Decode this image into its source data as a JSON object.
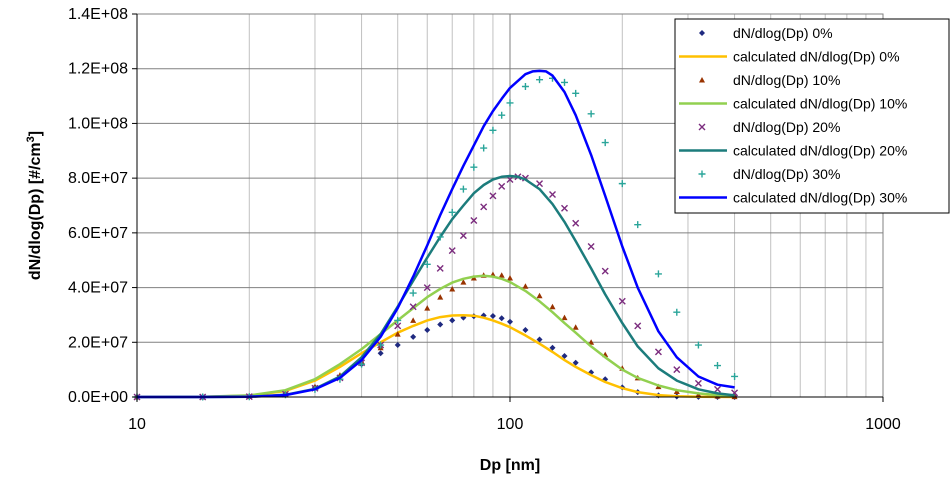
{
  "chart_data": {
    "type": "scatter",
    "title": "",
    "xlabel": "Dp [nm]",
    "ylabel_main": "dN/dlog(Dp) [#/cm",
    "ylabel_sup": "3",
    "ylabel_end": "]",
    "x_scale": "log",
    "xlim": [
      10,
      1000
    ],
    "ylim": [
      0,
      140000000
    ],
    "x_tick_labels": [
      "10",
      "100",
      "1000"
    ],
    "y_tick_labels": [
      "0.0E+00",
      "2.0E+07",
      "4.0E+07",
      "6.0E+07",
      "8.0E+07",
      "1.0E+08",
      "1.2E+08",
      "1.4E+08"
    ],
    "grid": true,
    "legend_position": "top-right",
    "series": [
      {
        "name": "dN/dlog(Dp) 0%",
        "kind": "measured",
        "marker": "diamond",
        "color": "#1f2a80",
        "x": [
          10,
          15,
          20,
          25,
          30,
          35,
          40,
          45,
          50,
          55,
          60,
          65,
          70,
          75,
          80,
          85,
          90,
          95,
          100,
          110,
          120,
          130,
          140,
          150,
          165,
          180,
          200,
          220,
          250,
          280,
          320,
          360,
          400
        ],
        "y": [
          0,
          10000,
          200000,
          1200000,
          3500000,
          7500000,
          12000000,
          16000000,
          19000000,
          22000000,
          24500000,
          26500000,
          28000000,
          29000000,
          29500000,
          29800000,
          29600000,
          28800000,
          27500000,
          24500000,
          21000000,
          18000000,
          15000000,
          12500000,
          9000000,
          6500000,
          3500000,
          1800000,
          600000,
          200000,
          50000,
          20000,
          10000
        ]
      },
      {
        "name": "calculated dN/dlog(Dp) 0%",
        "kind": "calculated",
        "marker": "line",
        "color": "#ffc000",
        "x": [
          10,
          15,
          20,
          25,
          30,
          35,
          40,
          45,
          50,
          55,
          60,
          65,
          70,
          75,
          80,
          85,
          90,
          95,
          100,
          110,
          120,
          130,
          140,
          150,
          165,
          180,
          200,
          220,
          250,
          280,
          320,
          360,
          400
        ],
        "y": [
          0,
          50000,
          500000,
          2200000,
          6000000,
          11000000,
          16000000,
          20000000,
          23500000,
          26000000,
          28000000,
          29200000,
          29800000,
          29900000,
          29700000,
          29000000,
          28000000,
          26800000,
          25500000,
          22500000,
          19500000,
          16500000,
          13500000,
          11000000,
          8000000,
          5500000,
          3200000,
          1800000,
          700000,
          250000,
          60000,
          20000,
          5000
        ]
      },
      {
        "name": "dN/dlog(Dp) 10%",
        "kind": "measured",
        "marker": "triangle",
        "color": "#993300",
        "x": [
          10,
          15,
          20,
          25,
          30,
          35,
          40,
          45,
          50,
          55,
          60,
          65,
          70,
          75,
          80,
          85,
          90,
          95,
          100,
          110,
          120,
          130,
          140,
          150,
          165,
          180,
          200,
          220,
          250,
          280,
          320,
          360,
          400
        ],
        "y": [
          0,
          10000,
          200000,
          1300000,
          3800000,
          8000000,
          13000000,
          18000000,
          23000000,
          28000000,
          32500000,
          36500000,
          39500000,
          42000000,
          43500000,
          44500000,
          44800000,
          44500000,
          43500000,
          40500000,
          37000000,
          33000000,
          29000000,
          25500000,
          20000000,
          15500000,
          10500000,
          7000000,
          3800000,
          2000000,
          800000,
          300000,
          150000
        ]
      },
      {
        "name": "calculated dN/dlog(Dp) 10%",
        "kind": "calculated",
        "marker": "line",
        "color": "#92d050",
        "x": [
          10,
          15,
          20,
          25,
          30,
          35,
          40,
          45,
          50,
          55,
          60,
          65,
          70,
          75,
          80,
          85,
          90,
          95,
          100,
          110,
          120,
          130,
          140,
          150,
          165,
          180,
          200,
          220,
          250,
          280,
          320,
          360,
          400
        ],
        "y": [
          0,
          60000,
          600000,
          2500000,
          6500000,
          12000000,
          17500000,
          23000000,
          28000000,
          32500000,
          36500000,
          39500000,
          41800000,
          43200000,
          44000000,
          44300000,
          44000000,
          43200000,
          42000000,
          38800000,
          35000000,
          31000000,
          27000000,
          23500000,
          18500000,
          14500000,
          10000000,
          7000000,
          4200000,
          2500000,
          1300000,
          700000,
          400000
        ]
      },
      {
        "name": "dN/dlog(Dp) 20%",
        "kind": "measured",
        "marker": "x",
        "color": "#7b2c7e",
        "x": [
          10,
          15,
          20,
          25,
          30,
          35,
          40,
          45,
          50,
          55,
          60,
          65,
          70,
          75,
          80,
          85,
          90,
          95,
          100,
          105,
          110,
          120,
          130,
          140,
          150,
          165,
          180,
          200,
          220,
          250,
          280,
          320,
          360,
          400
        ],
        "y": [
          0,
          10000,
          150000,
          1000000,
          3200000,
          7000000,
          12500000,
          19000000,
          26000000,
          33000000,
          40000000,
          47000000,
          53500000,
          59000000,
          64500000,
          69500000,
          73500000,
          77000000,
          79500000,
          80500000,
          80000000,
          78000000,
          74000000,
          69000000,
          63500000,
          55000000,
          46000000,
          35000000,
          26000000,
          16500000,
          10000000,
          5000000,
          2800000,
          1500000
        ]
      },
      {
        "name": "calculated dN/dlog(Dp) 20%",
        "kind": "calculated",
        "marker": "line",
        "color": "#1c7c7c",
        "x": [
          10,
          15,
          20,
          25,
          30,
          35,
          40,
          45,
          50,
          55,
          60,
          65,
          70,
          75,
          80,
          85,
          90,
          95,
          100,
          105,
          110,
          120,
          130,
          140,
          150,
          165,
          180,
          200,
          220,
          250,
          280,
          320,
          360,
          400
        ],
        "y": [
          0,
          5000,
          100000,
          800000,
          3000000,
          7500000,
          14500000,
          23000000,
          33000000,
          42500000,
          51000000,
          58500000,
          65000000,
          70000000,
          74500000,
          77500000,
          79500000,
          80500000,
          80800000,
          80500000,
          79500000,
          76000000,
          70500000,
          64000000,
          57000000,
          47000000,
          37500000,
          27000000,
          18500000,
          10500000,
          6000000,
          2800000,
          1300000,
          600000
        ]
      },
      {
        "name": "dN/dlog(Dp) 30%",
        "kind": "measured",
        "marker": "plus",
        "color": "#2aa59a",
        "x": [
          10,
          15,
          20,
          25,
          30,
          35,
          40,
          45,
          50,
          55,
          60,
          65,
          70,
          75,
          80,
          85,
          90,
          95,
          100,
          110,
          120,
          130,
          140,
          150,
          165,
          180,
          200,
          220,
          250,
          280,
          320,
          360,
          400
        ],
        "y": [
          0,
          5000,
          100000,
          800000,
          2800000,
          6500000,
          12000000,
          19000000,
          28000000,
          38000000,
          48500000,
          58500000,
          67500000,
          76000000,
          84000000,
          91000000,
          97500000,
          103000000,
          107500000,
          113500000,
          116000000,
          116500000,
          115000000,
          111000000,
          103500000,
          93000000,
          78000000,
          63000000,
          45000000,
          31000000,
          19000000,
          11500000,
          7500000
        ]
      },
      {
        "name": "calculated dN/dlog(Dp) 30%",
        "kind": "calculated",
        "marker": "line",
        "color": "#0000ff",
        "x": [
          10,
          15,
          20,
          25,
          30,
          35,
          40,
          45,
          50,
          55,
          60,
          65,
          70,
          75,
          80,
          85,
          90,
          95,
          100,
          110,
          115,
          120,
          125,
          130,
          140,
          150,
          165,
          180,
          200,
          220,
          250,
          280,
          320,
          360,
          400
        ],
        "y": [
          0,
          3000,
          80000,
          700000,
          2800000,
          7000000,
          13500000,
          22000000,
          32500000,
          44000000,
          55500000,
          66500000,
          76000000,
          84500000,
          92000000,
          99000000,
          104500000,
          109000000,
          113000000,
          118000000,
          119000000,
          119200000,
          119000000,
          117500000,
          111500000,
          103000000,
          88500000,
          73500000,
          55000000,
          40000000,
          24000000,
          14500000,
          7500000,
          4500000,
          3500000
        ]
      }
    ]
  }
}
